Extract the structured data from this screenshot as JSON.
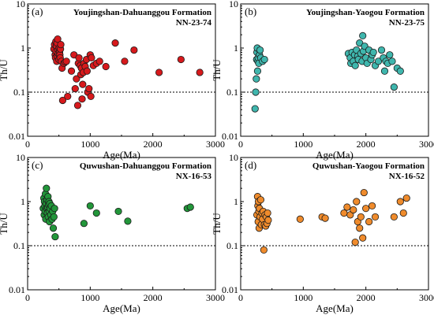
{
  "chart_data": [
    {
      "type": "scatter",
      "panel_label": "(a)",
      "title": "Youjingshan-Dahuanggou Formation",
      "sample": "NN-23-74",
      "xlabel": "Age(Ma)",
      "ylabel": "Th/U",
      "xlim": [
        0,
        3000
      ],
      "ylim": [
        0.01,
        10
      ],
      "yscale": "log",
      "xticks": [
        "0",
        "1000",
        "2000",
        "3000"
      ],
      "yticks": [
        "0.01",
        "0.1",
        "1",
        "10"
      ],
      "reference_line_y": 0.1,
      "color": "#d7191c",
      "series": [
        {
          "x": [
            420,
            430,
            440,
            445,
            450,
            455,
            460,
            465,
            470,
            475,
            480,
            485,
            490,
            500,
            505,
            510,
            515,
            520,
            525,
            530,
            540,
            550,
            560,
            580,
            600,
            620,
            640,
            700,
            740,
            760,
            780,
            800,
            810,
            820,
            840,
            850,
            860,
            870,
            880,
            890,
            900,
            920,
            940,
            950,
            960,
            980,
            1000,
            1010,
            1020,
            1050,
            1100,
            1150,
            1250,
            1400,
            1550,
            1700,
            2100,
            2450,
            2750
          ],
          "y": [
            0.95,
            1.2,
            0.7,
            0.6,
            1.4,
            0.85,
            1.1,
            0.5,
            1.3,
            0.65,
            1.6,
            0.9,
            0.75,
            0.55,
            1.0,
            0.8,
            0.7,
            0.6,
            0.95,
            1.2,
            0.5,
            0.35,
            0.065,
            0.45,
            0.48,
            0.5,
            0.08,
            0.3,
            0.7,
            0.12,
            0.2,
            0.05,
            0.45,
            0.6,
            0.4,
            0.25,
            0.35,
            0.07,
            0.15,
            0.28,
            0.45,
            0.38,
            0.55,
            0.3,
            0.1,
            0.12,
            0.7,
            0.08,
            0.6,
            0.4,
            0.45,
            0.5,
            0.38,
            1.3,
            0.5,
            0.9,
            0.28,
            0.55,
            0.28
          ]
        }
      ]
    },
    {
      "type": "scatter",
      "panel_label": "(b)",
      "title": "Youjingshan-Yaogou Formation",
      "sample": "NN-23-75",
      "xlabel": "Age(Ma)",
      "ylabel": "Th/U",
      "xlim": [
        0,
        3000
      ],
      "ylim": [
        0.01,
        10
      ],
      "yscale": "log",
      "xticks": [
        "0",
        "1000",
        "2000",
        "3000"
      ],
      "yticks": [
        "0.01",
        "0.1",
        "1",
        "10"
      ],
      "reference_line_y": 0.1,
      "color": "#3fb6ad",
      "series": [
        {
          "x": [
            230,
            240,
            250,
            255,
            260,
            265,
            270,
            275,
            280,
            290,
            300,
            310,
            320,
            350,
            380,
            1720,
            1750,
            1760,
            1780,
            1800,
            1820,
            1830,
            1850,
            1870,
            1880,
            1900,
            1920,
            1940,
            1950,
            1960,
            1980,
            2000,
            2020,
            2050,
            2080,
            2100,
            2120,
            2150,
            2200,
            2250,
            2280,
            2300,
            2320,
            2350,
            2380,
            2420,
            2450,
            2500,
            2550
          ],
          "y": [
            0.042,
            0.1,
            0.2,
            0.55,
            0.8,
            1.0,
            0.3,
            0.5,
            0.6,
            0.45,
            0.7,
            0.9,
            0.6,
            0.5,
            0.55,
            0.75,
            0.6,
            0.45,
            0.8,
            0.5,
            0.7,
            0.4,
            0.9,
            0.65,
            0.55,
            1.3,
            0.75,
            0.5,
            1.9,
            0.85,
            1.1,
            0.6,
            0.45,
            0.9,
            0.55,
            0.7,
            0.8,
            0.4,
            0.5,
            0.9,
            0.6,
            0.3,
            0.5,
            0.45,
            0.7,
            0.5,
            0.13,
            0.35,
            0.3
          ]
        }
      ]
    },
    {
      "type": "scatter",
      "panel_label": "(c)",
      "title": "Quwushan-Dahuanggou Formation",
      "sample": "NX-16-53",
      "xlabel": "Age(Ma)",
      "ylabel": "Th/U",
      "xlim": [
        0,
        3000
      ],
      "ylim": [
        0.01,
        10
      ],
      "yscale": "log",
      "xticks": [
        "0",
        "1000",
        "2000",
        "3000"
      ],
      "yticks": [
        "0.01",
        "0.1",
        "1",
        "10"
      ],
      "reference_line_y": 0.1,
      "color": "#22963a",
      "series": [
        {
          "x": [
            250,
            260,
            265,
            270,
            275,
            280,
            285,
            290,
            295,
            300,
            305,
            310,
            315,
            320,
            325,
            330,
            335,
            340,
            345,
            350,
            355,
            360,
            370,
            380,
            390,
            400,
            410,
            420,
            430,
            440,
            900,
            1000,
            1100,
            1450,
            1600,
            2550,
            2600
          ],
          "y": [
            0.7,
            1.2,
            0.5,
            1.0,
            0.8,
            0.6,
            1.5,
            0.4,
            0.9,
            2.0,
            0.7,
            1.1,
            0.55,
            0.75,
            1.3,
            0.45,
            0.85,
            1.0,
            0.6,
            0.35,
            0.9,
            0.7,
            0.5,
            0.8,
            0.4,
            0.6,
            0.25,
            0.45,
            0.7,
            0.16,
            0.32,
            0.8,
            0.55,
            0.6,
            0.36,
            0.7,
            0.75
          ]
        }
      ]
    },
    {
      "type": "scatter",
      "panel_label": "(d)",
      "title": "Quwushan-Yaogou Formation",
      "sample": "NX-16-52",
      "xlabel": "Age(Ma)",
      "ylabel": "Th/U",
      "xlim": [
        0,
        3000
      ],
      "ylim": [
        0.01,
        10
      ],
      "yscale": "log",
      "xticks": [
        "0",
        "1000",
        "2000",
        "3000"
      ],
      "yticks": [
        "0.01",
        "0.1",
        "1",
        "10"
      ],
      "reference_line_y": 0.1,
      "color": "#ef8b2c",
      "series": [
        {
          "x": [
            260,
            270,
            275,
            280,
            285,
            290,
            295,
            300,
            310,
            320,
            330,
            340,
            350,
            360,
            370,
            380,
            390,
            400,
            410,
            420,
            430,
            440,
            950,
            1300,
            1350,
            1650,
            1700,
            1750,
            1800,
            1830,
            1850,
            1870,
            1900,
            1920,
            1950,
            1970,
            2000,
            2050,
            2100,
            2150,
            2450,
            2550,
            2600,
            2650
          ],
          "y": [
            0.5,
            1.3,
            0.8,
            0.35,
            1.0,
            0.6,
            0.25,
            0.7,
            0.45,
            1.1,
            0.3,
            0.55,
            0.4,
            0.6,
            0.08,
            0.3,
            0.5,
            0.28,
            0.45,
            0.32,
            0.55,
            0.38,
            0.4,
            0.45,
            0.42,
            0.55,
            0.75,
            0.5,
            0.65,
            0.12,
            1.0,
            0.35,
            0.25,
            0.45,
            0.15,
            1.6,
            0.7,
            0.35,
            0.8,
            0.45,
            0.45,
            1.0,
            0.55,
            1.2
          ]
        }
      ]
    }
  ]
}
